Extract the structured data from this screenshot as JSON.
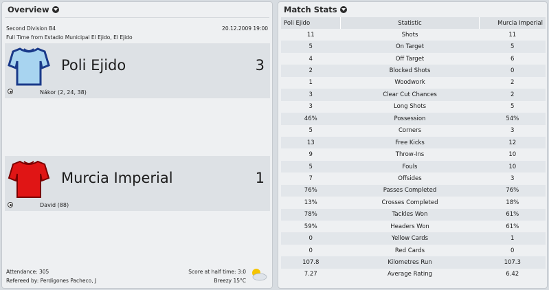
{
  "overview": {
    "title": "Overview",
    "competition": "Second Division B4",
    "date": "20.12.2009 19:00",
    "venue": "Full Time from Estadio Municipal El Ejido, El Ejido",
    "home": {
      "name": "Poli Ejido",
      "score": "3",
      "scorers": "Nákor (2, 24, 38)",
      "shirt_color": "#a8d4f0",
      "shirt_trim": "#1a3a8a"
    },
    "away": {
      "name": "Murcia Imperial",
      "score": "1",
      "scorers": "David (88)",
      "shirt_color": "#e01515",
      "shirt_trim": "#7a0000"
    },
    "attendance": "Attendance: 305",
    "referee": "Refereed by: Perdigones Pacheco, J",
    "half_time": "Score at half time: 3:0",
    "weather": "Breezy 15°C"
  },
  "stats": {
    "title": "Match Stats",
    "headers": [
      "Poli Ejido",
      "Statistic",
      "Murcia Imperial"
    ],
    "rows": [
      [
        "11",
        "Shots",
        "11"
      ],
      [
        "5",
        "On Target",
        "5"
      ],
      [
        "4",
        "Off Target",
        "6"
      ],
      [
        "2",
        "Blocked Shots",
        "0"
      ],
      [
        "1",
        "Woodwork",
        "2"
      ],
      [
        "3",
        "Clear Cut Chances",
        "2"
      ],
      [
        "3",
        "Long Shots",
        "5"
      ],
      [
        "46%",
        "Possession",
        "54%"
      ],
      [
        "5",
        "Corners",
        "3"
      ],
      [
        "13",
        "Free Kicks",
        "12"
      ],
      [
        "9",
        "Throw-Ins",
        "10"
      ],
      [
        "5",
        "Fouls",
        "10"
      ],
      [
        "7",
        "Offsides",
        "3"
      ],
      [
        "76%",
        "Passes Completed",
        "76%"
      ],
      [
        "13%",
        "Crosses Completed",
        "18%"
      ],
      [
        "78%",
        "Tackles Won",
        "61%"
      ],
      [
        "59%",
        "Headers Won",
        "61%"
      ],
      [
        "0",
        "Yellow Cards",
        "1"
      ],
      [
        "0",
        "Red Cards",
        "0"
      ],
      [
        "107.8",
        "Kilometres Run",
        "107.3"
      ],
      [
        "7.27",
        "Average Rating",
        "6.42"
      ]
    ]
  }
}
